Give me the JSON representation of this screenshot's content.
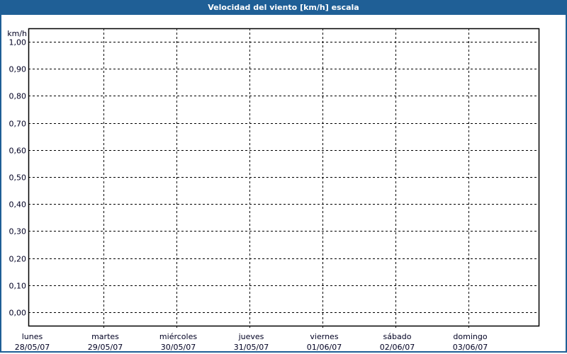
{
  "window": {
    "title": "Velocidad del viento [km/h] escala"
  },
  "colors": {
    "titlebar": "#1f5f96",
    "grid": "#000000",
    "axis": "#000000"
  },
  "chart_data": {
    "type": "line",
    "title": "Velocidad del viento [km/h] escala",
    "ylabel": "km/h",
    "ylim": [
      0,
      1.0
    ],
    "yticks": [
      "0,00",
      "0,10",
      "0,20",
      "0,30",
      "0,40",
      "0,50",
      "0,60",
      "0,70",
      "0,80",
      "0,90",
      "1,00"
    ],
    "x_categories": [
      {
        "day": "lunes",
        "date": "28/05/07"
      },
      {
        "day": "martes",
        "date": "29/05/07"
      },
      {
        "day": "miércoles",
        "date": "30/05/07"
      },
      {
        "day": "jueves",
        "date": "31/05/07"
      },
      {
        "day": "viernes",
        "date": "01/06/07"
      },
      {
        "day": "sábado",
        "date": "02/06/07"
      },
      {
        "day": "domingo",
        "date": "03/06/07"
      }
    ],
    "grid": true,
    "grid_style": "dashed",
    "series": []
  }
}
